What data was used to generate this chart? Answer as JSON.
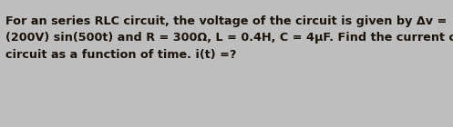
{
  "text": "For an series RLC circuit, the voltage of the circuit is given by Δv =\n(200V) sin(500t) and R = 300Ω, L = 0.4H, C = 4μF. Find the current of the\ncircuit as a function of time. i(t) =?",
  "background_color": "#bebebe",
  "text_color": "#1a1209",
  "font_size": 9.2,
  "fig_width": 4.97,
  "fig_height": 1.4,
  "dpi": 100
}
